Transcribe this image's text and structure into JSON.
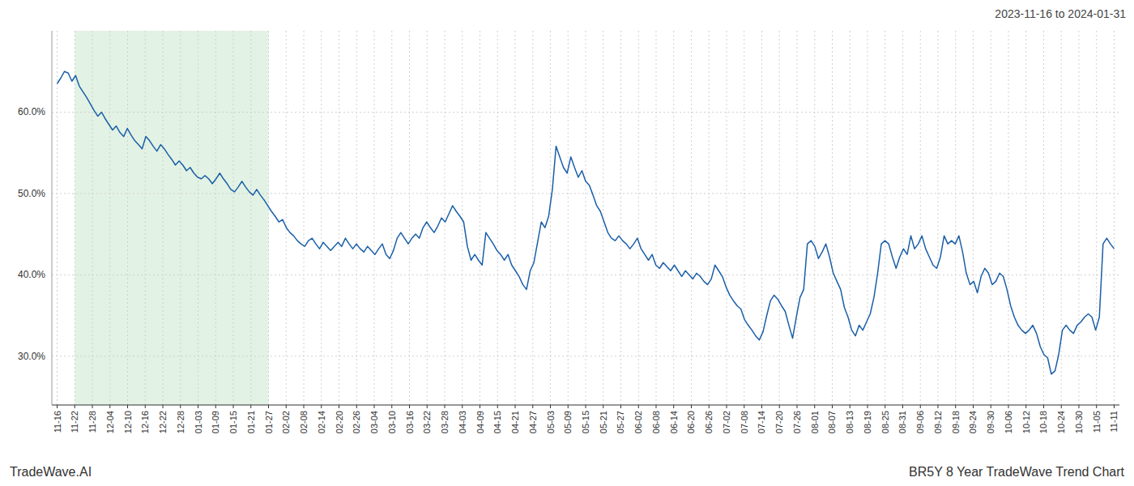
{
  "chart_data": {
    "type": "line",
    "title": "BR5Y 8 Year TradeWave Trend Chart",
    "subtitle": "2023-11-16 to 2024-01-31",
    "source": "TradeWave.AI",
    "color": "#1a5fa8",
    "grid": true,
    "ylim": [
      24,
      70
    ],
    "yticks": [
      {
        "value": 30,
        "label": "30.0%"
      },
      {
        "value": 40,
        "label": "40.0%"
      },
      {
        "value": 50,
        "label": "50.0%"
      },
      {
        "value": 60,
        "label": "60.0%"
      }
    ],
    "xlim": [
      -0.3,
      60.3
    ],
    "xticks": [
      {
        "value": 0,
        "label": "11-16"
      },
      {
        "value": 1,
        "label": "11-22"
      },
      {
        "value": 2,
        "label": "11-28"
      },
      {
        "value": 3,
        "label": "12-04"
      },
      {
        "value": 4,
        "label": "12-10"
      },
      {
        "value": 5,
        "label": "12-16"
      },
      {
        "value": 6,
        "label": "12-22"
      },
      {
        "value": 7,
        "label": "12-28"
      },
      {
        "value": 8,
        "label": "01-03"
      },
      {
        "value": 9,
        "label": "01-09"
      },
      {
        "value": 10,
        "label": "01-15"
      },
      {
        "value": 11,
        "label": "01-21"
      },
      {
        "value": 12,
        "label": "01-27"
      },
      {
        "value": 13,
        "label": "02-02"
      },
      {
        "value": 14,
        "label": "02-08"
      },
      {
        "value": 15,
        "label": "02-14"
      },
      {
        "value": 16,
        "label": "02-20"
      },
      {
        "value": 17,
        "label": "02-26"
      },
      {
        "value": 18,
        "label": "03-04"
      },
      {
        "value": 19,
        "label": "03-10"
      },
      {
        "value": 20,
        "label": "03-16"
      },
      {
        "value": 21,
        "label": "03-22"
      },
      {
        "value": 22,
        "label": "03-28"
      },
      {
        "value": 23,
        "label": "04-03"
      },
      {
        "value": 24,
        "label": "04-09"
      },
      {
        "value": 25,
        "label": "04-15"
      },
      {
        "value": 26,
        "label": "04-21"
      },
      {
        "value": 27,
        "label": "04-27"
      },
      {
        "value": 28,
        "label": "05-03"
      },
      {
        "value": 29,
        "label": "05-09"
      },
      {
        "value": 30,
        "label": "05-15"
      },
      {
        "value": 31,
        "label": "05-21"
      },
      {
        "value": 32,
        "label": "05-27"
      },
      {
        "value": 33,
        "label": "06-02"
      },
      {
        "value": 34,
        "label": "06-08"
      },
      {
        "value": 35,
        "label": "06-14"
      },
      {
        "value": 36,
        "label": "06-20"
      },
      {
        "value": 37,
        "label": "06-26"
      },
      {
        "value": 38,
        "label": "07-02"
      },
      {
        "value": 39,
        "label": "07-08"
      },
      {
        "value": 40,
        "label": "07-14"
      },
      {
        "value": 41,
        "label": "07-20"
      },
      {
        "value": 42,
        "label": "07-26"
      },
      {
        "value": 43,
        "label": "08-01"
      },
      {
        "value": 44,
        "label": "08-07"
      },
      {
        "value": 45,
        "label": "08-13"
      },
      {
        "value": 46,
        "label": "08-19"
      },
      {
        "value": 47,
        "label": "08-25"
      },
      {
        "value": 48,
        "label": "08-31"
      },
      {
        "value": 49,
        "label": "09-06"
      },
      {
        "value": 50,
        "label": "09-12"
      },
      {
        "value": 51,
        "label": "09-18"
      },
      {
        "value": 52,
        "label": "09-24"
      },
      {
        "value": 53,
        "label": "09-30"
      },
      {
        "value": 54,
        "label": "10-06"
      },
      {
        "value": 55,
        "label": "10-12"
      },
      {
        "value": 56,
        "label": "10-18"
      },
      {
        "value": 57,
        "label": "10-24"
      },
      {
        "value": 58,
        "label": "10-30"
      },
      {
        "value": 59,
        "label": "11-05"
      },
      {
        "value": 60,
        "label": "11-11"
      }
    ],
    "span": {
      "from": "11-22",
      "to": "01-27",
      "color": "#d5ecd9"
    },
    "values": [
      63.5,
      64.2,
      65.0,
      64.8,
      63.8,
      64.5,
      63.2,
      62.5,
      61.8,
      61.0,
      60.2,
      59.5,
      60.0,
      59.2,
      58.5,
      57.8,
      58.3,
      57.5,
      57.0,
      58.0,
      57.2,
      56.5,
      56.0,
      55.5,
      57.0,
      56.5,
      55.8,
      55.2,
      56.0,
      55.5,
      54.8,
      54.2,
      53.5,
      54.0,
      53.5,
      52.8,
      53.2,
      52.5,
      52.0,
      51.8,
      52.2,
      51.8,
      51.2,
      51.8,
      52.5,
      51.8,
      51.2,
      50.5,
      50.2,
      50.8,
      51.5,
      50.8,
      50.2,
      49.8,
      50.5,
      49.8,
      49.2,
      48.5,
      47.8,
      47.2,
      46.5,
      46.8,
      45.8,
      45.2,
      44.8,
      44.2,
      43.8,
      43.5,
      44.2,
      44.5,
      43.8,
      43.2,
      44.0,
      43.5,
      43.0,
      43.5,
      44.0,
      43.5,
      44.5,
      43.8,
      43.2,
      43.8,
      43.2,
      42.8,
      43.5,
      43.0,
      42.5,
      43.2,
      43.8,
      42.5,
      42.0,
      43.0,
      44.5,
      45.2,
      44.5,
      43.8,
      44.5,
      45.0,
      44.5,
      45.8,
      46.5,
      45.8,
      45.2,
      46.0,
      47.0,
      46.5,
      47.5,
      48.5,
      47.8,
      47.2,
      46.5,
      43.5,
      41.8,
      42.5,
      41.8,
      41.2,
      45.2,
      44.5,
      43.8,
      43.0,
      42.5,
      41.8,
      42.5,
      41.2,
      40.5,
      39.8,
      38.8,
      38.2,
      40.5,
      41.5,
      44.0,
      46.5,
      45.8,
      47.2,
      50.5,
      55.8,
      54.5,
      53.2,
      52.5,
      54.5,
      53.2,
      52.0,
      52.8,
      51.5,
      51.0,
      49.8,
      48.5,
      47.8,
      46.5,
      45.2,
      44.5,
      44.2,
      44.8,
      44.2,
      43.8,
      43.2,
      43.8,
      44.5,
      43.2,
      42.5,
      41.8,
      42.5,
      41.2,
      40.8,
      41.5,
      41.0,
      40.5,
      41.2,
      40.5,
      39.8,
      40.5,
      40.0,
      39.5,
      40.2,
      39.8,
      39.2,
      38.8,
      39.5,
      41.2,
      40.5,
      39.8,
      38.5,
      37.5,
      36.8,
      36.2,
      35.8,
      34.5,
      33.8,
      33.2,
      32.5,
      32.0,
      33.0,
      35.0,
      36.8,
      37.5,
      37.0,
      36.2,
      35.5,
      33.8,
      32.2,
      34.8,
      37.2,
      38.2,
      43.8,
      44.2,
      43.5,
      42.0,
      42.8,
      43.8,
      42.2,
      40.2,
      39.2,
      38.2,
      36.0,
      34.8,
      33.2,
      32.5,
      33.8,
      33.2,
      34.2,
      35.2,
      37.2,
      40.2,
      43.8,
      44.2,
      43.8,
      42.2,
      40.8,
      42.2,
      43.2,
      42.5,
      44.8,
      43.2,
      43.8,
      44.8,
      43.2,
      42.2,
      41.2,
      40.8,
      42.2,
      44.8,
      43.8,
      44.2,
      43.8,
      44.8,
      42.8,
      40.2,
      38.8,
      39.2,
      37.8,
      39.8,
      40.8,
      40.2,
      38.8,
      39.2,
      40.2,
      39.8,
      38.2,
      36.2,
      34.8,
      33.8,
      33.2,
      32.8,
      33.2,
      33.8,
      32.8,
      31.2,
      30.2,
      29.8,
      27.8,
      28.2,
      30.2,
      33.2,
      33.8,
      33.2,
      32.8,
      33.8,
      34.2,
      34.8,
      35.2,
      34.8,
      33.2,
      34.8,
      43.8,
      44.5,
      43.8,
      43.2
    ]
  }
}
